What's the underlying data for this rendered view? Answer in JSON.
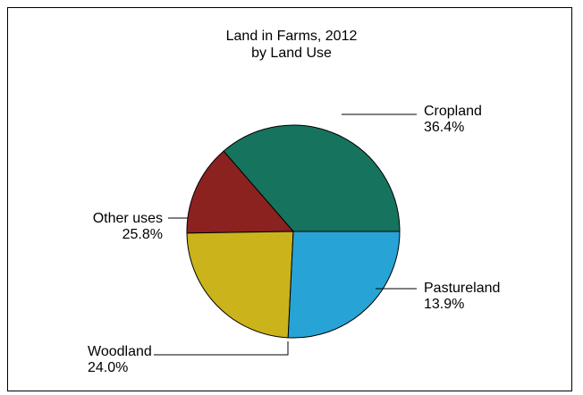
{
  "chart_data": {
    "type": "pie",
    "title": "Land in Farms, 2012",
    "subtitle": "by Land Use",
    "slices": [
      {
        "label": "Cropland",
        "value": 36.4,
        "value_label": "36.4%",
        "color": "#16735E"
      },
      {
        "label": "Pastureland",
        "value": 13.9,
        "value_label": "13.9%",
        "color": "#8B2220"
      },
      {
        "label": "Woodland",
        "value": 24.0,
        "value_label": "24.0%",
        "color": "#CBB31B"
      },
      {
        "label": "Other uses",
        "value": 25.8,
        "value_label": "25.8%",
        "color": "#27A3D6"
      }
    ],
    "start": "3 o'clock",
    "direction": "counter-clockwise",
    "legend": "none"
  }
}
